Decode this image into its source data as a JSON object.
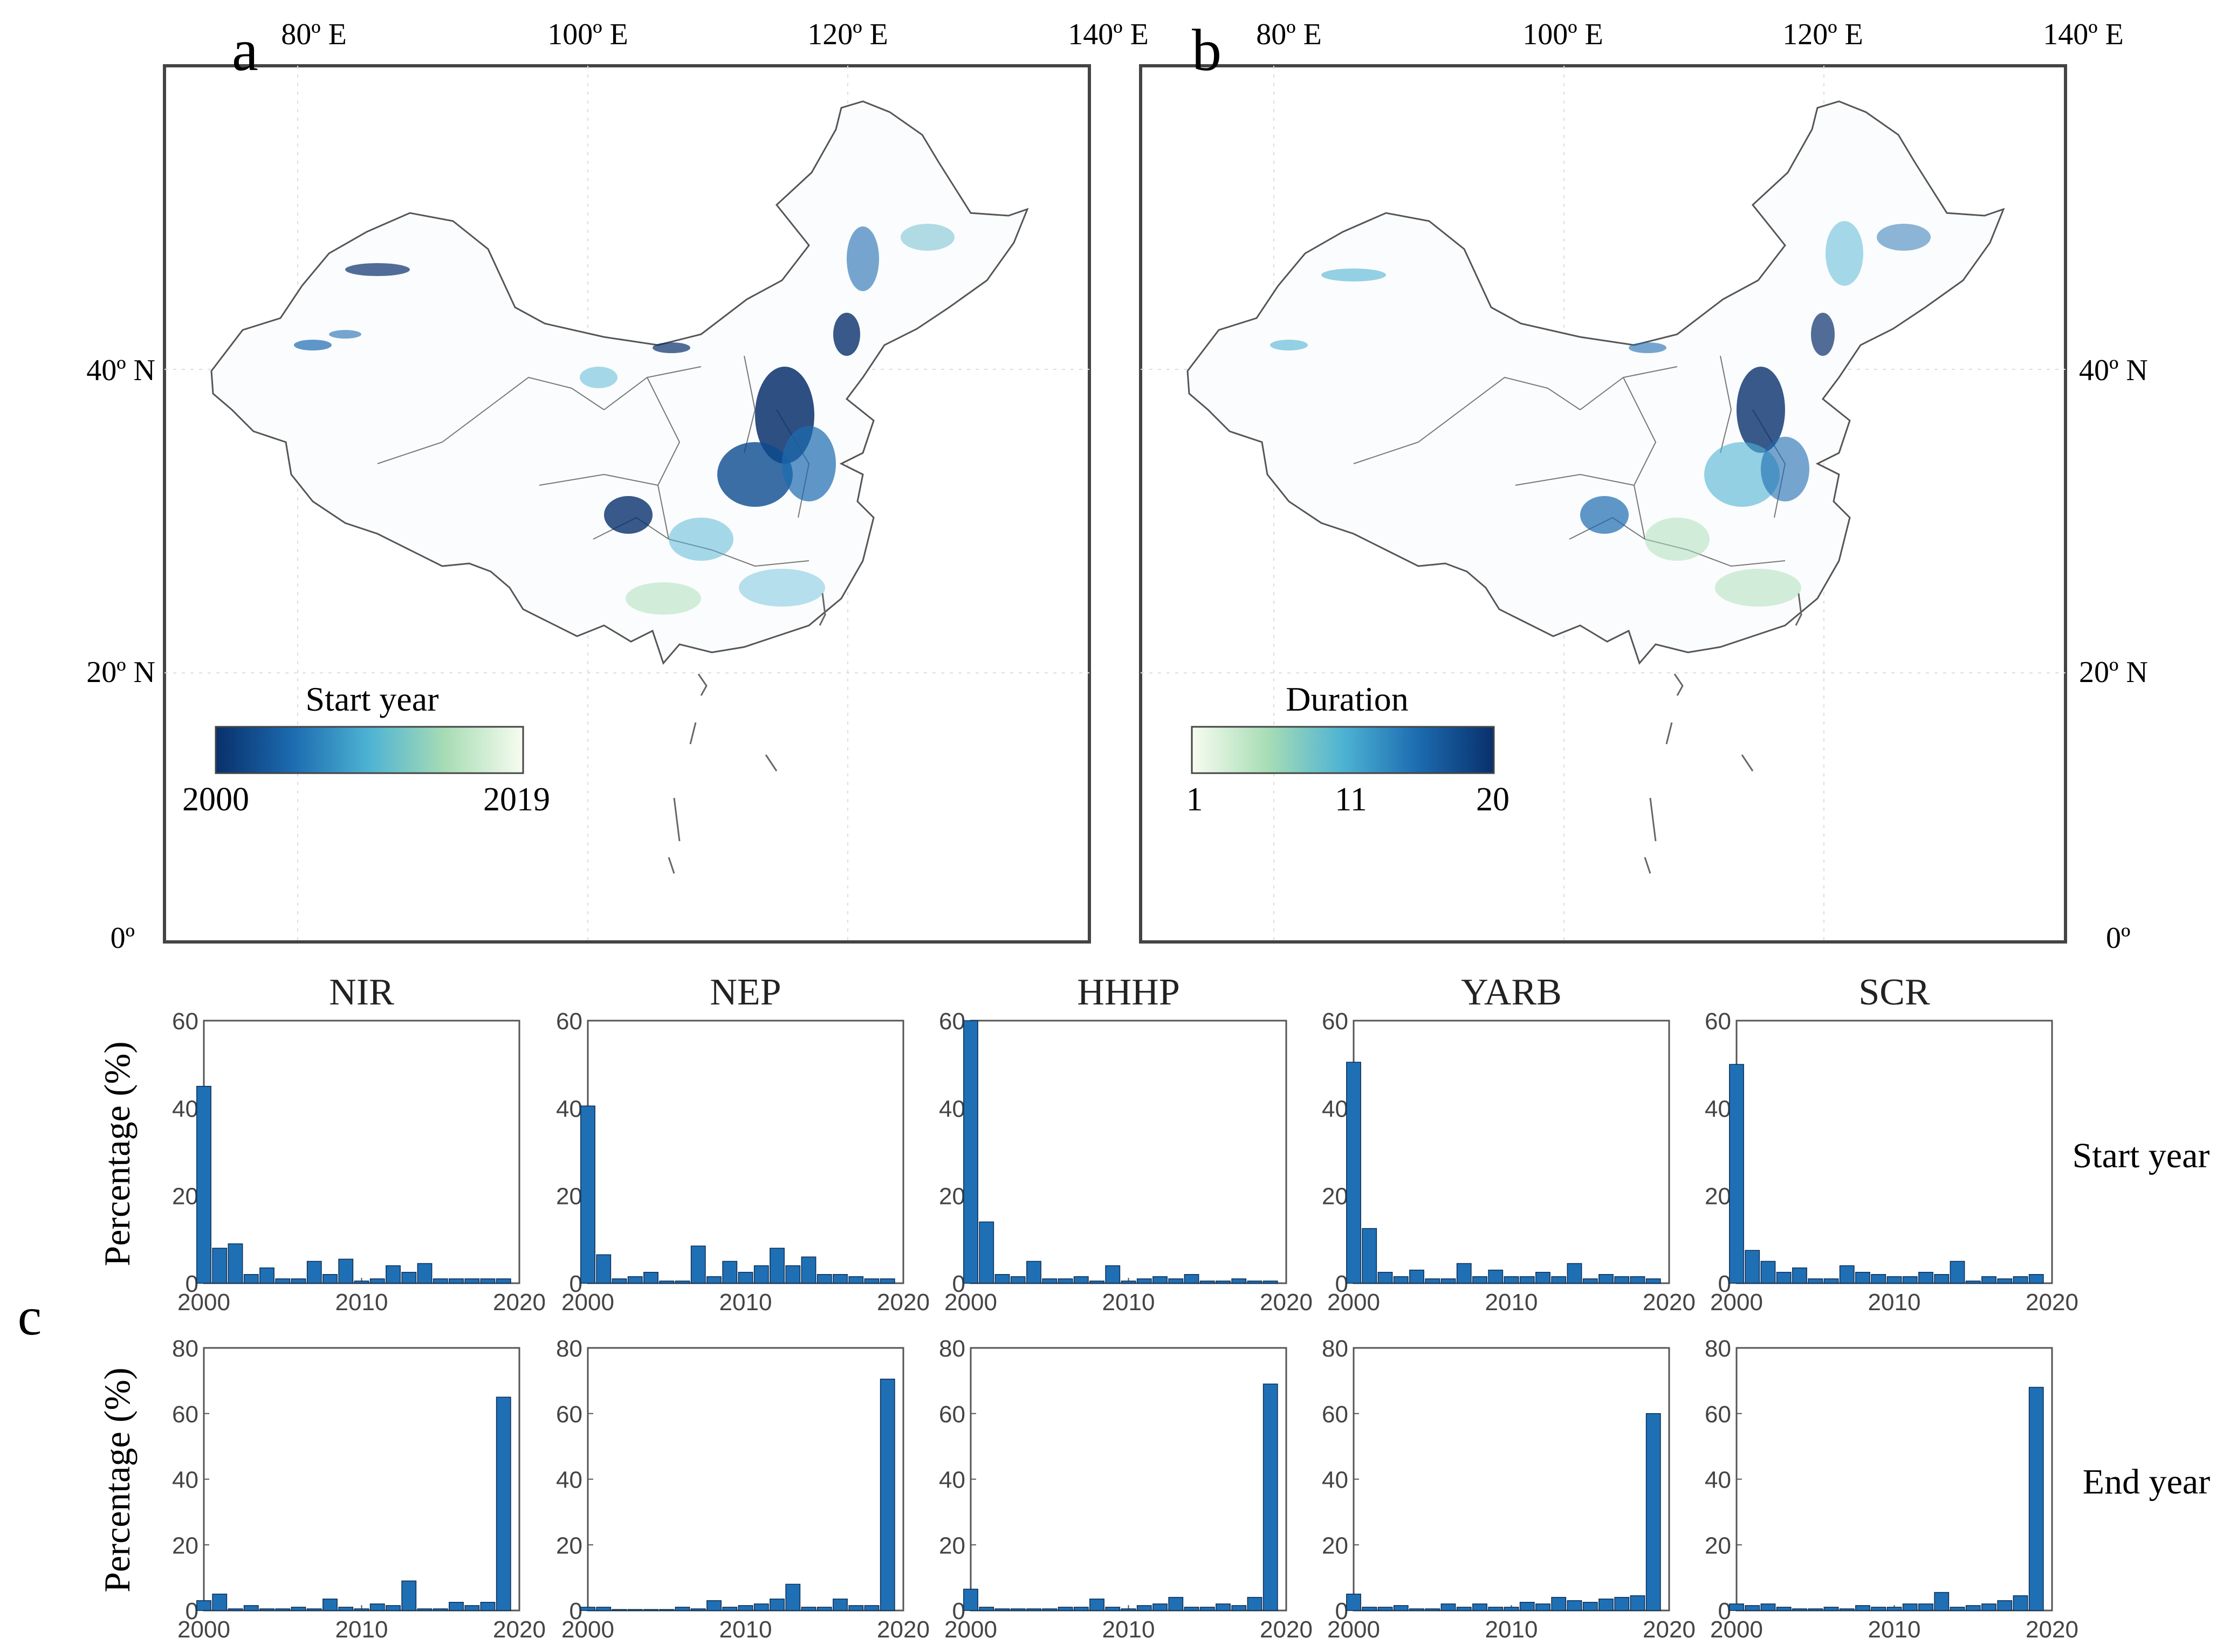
{
  "maps": {
    "lon_ticks": [
      "80º E",
      "100º E",
      "120º E",
      "140º E"
    ],
    "lat_ticks": [
      "40º N",
      "20º N",
      "0º"
    ],
    "panel_a": {
      "label": "a",
      "colorbar_title": "Start year",
      "colorbar_ticks": [
        "2000",
        "2019"
      ],
      "colors": [
        "#08306b",
        "#1c6bb0",
        "#4eb3d3",
        "#a8ddb5",
        "#f7fcf0"
      ]
    },
    "panel_b": {
      "label": "b",
      "colorbar_title": "Duration",
      "colorbar_ticks": [
        "1",
        "11",
        "20"
      ],
      "colors": [
        "#f7fcf0",
        "#a8ddb5",
        "#4eb3d3",
        "#1c6bb0",
        "#08306b"
      ]
    }
  },
  "panel_c": {
    "label": "c",
    "row_labels": [
      "Start year",
      "End year"
    ],
    "ylabel": "Percentage (%)",
    "x_ticks": [
      "2000",
      "2010",
      "2020"
    ],
    "bar_color": "#1f6fb5"
  },
  "chart_data": [
    {
      "type": "bar",
      "title": "NIR",
      "row": "Start year",
      "xlabel": "",
      "ylabel": "Percentage (%)",
      "xlim": [
        2000,
        2020
      ],
      "ylim": [
        0,
        60
      ],
      "yticks": [
        0,
        20,
        40,
        60
      ],
      "x": [
        2000,
        2001,
        2002,
        2003,
        2004,
        2005,
        2006,
        2007,
        2008,
        2009,
        2010,
        2011,
        2012,
        2013,
        2014,
        2015,
        2016,
        2017,
        2018,
        2019
      ],
      "values": [
        45,
        8,
        9,
        2,
        3.5,
        1,
        1,
        5,
        2,
        5.5,
        0.5,
        1,
        4,
        2.5,
        4.5,
        1,
        1,
        1,
        1,
        1
      ]
    },
    {
      "type": "bar",
      "title": "NEP",
      "row": "Start year",
      "xlabel": "",
      "ylabel": "Percentage (%)",
      "xlim": [
        2000,
        2020
      ],
      "ylim": [
        0,
        60
      ],
      "yticks": [
        0,
        20,
        40,
        60
      ],
      "x": [
        2000,
        2001,
        2002,
        2003,
        2004,
        2005,
        2006,
        2007,
        2008,
        2009,
        2010,
        2011,
        2012,
        2013,
        2014,
        2015,
        2016,
        2017,
        2018,
        2019
      ],
      "values": [
        40.5,
        6.5,
        1,
        1.5,
        2.5,
        0.5,
        0.5,
        8.5,
        1.5,
        5,
        2.5,
        4,
        8,
        4,
        6,
        2,
        2,
        1.5,
        1,
        1
      ]
    },
    {
      "type": "bar",
      "title": "HHHP",
      "row": "Start year",
      "xlabel": "",
      "ylabel": "Percentage (%)",
      "xlim": [
        2000,
        2020
      ],
      "ylim": [
        0,
        60
      ],
      "yticks": [
        0,
        20,
        40,
        60
      ],
      "x": [
        2000,
        2001,
        2002,
        2003,
        2004,
        2005,
        2006,
        2007,
        2008,
        2009,
        2010,
        2011,
        2012,
        2013,
        2014,
        2015,
        2016,
        2017,
        2018,
        2019
      ],
      "values": [
        60,
        14,
        2,
        1.5,
        5,
        1,
        1,
        1.5,
        0.5,
        4,
        0.5,
        1,
        1.5,
        1,
        2,
        0.5,
        0.5,
        1,
        0.5,
        0.5
      ]
    },
    {
      "type": "bar",
      "title": "YARB",
      "row": "Start year",
      "xlabel": "",
      "ylabel": "Percentage (%)",
      "xlim": [
        2000,
        2020
      ],
      "ylim": [
        0,
        60
      ],
      "yticks": [
        0,
        20,
        40,
        60
      ],
      "x": [
        2000,
        2001,
        2002,
        2003,
        2004,
        2005,
        2006,
        2007,
        2008,
        2009,
        2010,
        2011,
        2012,
        2013,
        2014,
        2015,
        2016,
        2017,
        2018,
        2019
      ],
      "values": [
        50.5,
        12.5,
        2.5,
        1.5,
        3,
        1,
        1,
        4.5,
        1.5,
        3,
        1.5,
        1.5,
        2.5,
        1.5,
        4.5,
        1,
        2,
        1.5,
        1.5,
        1
      ]
    },
    {
      "type": "bar",
      "title": "SCR",
      "row": "Start year",
      "xlabel": "",
      "ylabel": "Percentage (%)",
      "xlim": [
        2000,
        2020
      ],
      "ylim": [
        0,
        60
      ],
      "yticks": [
        0,
        20,
        40,
        60
      ],
      "x": [
        2000,
        2001,
        2002,
        2003,
        2004,
        2005,
        2006,
        2007,
        2008,
        2009,
        2010,
        2011,
        2012,
        2013,
        2014,
        2015,
        2016,
        2017,
        2018,
        2019
      ],
      "values": [
        50,
        7.5,
        5,
        2.5,
        3.5,
        1,
        1,
        4,
        2.5,
        2,
        1.5,
        1.5,
        2.5,
        2,
        5,
        0.5,
        1.5,
        1,
        1.5,
        2
      ]
    },
    {
      "type": "bar",
      "title": "",
      "row": "End year",
      "xlabel": "",
      "ylabel": "Percentage (%)",
      "xlim": [
        2000,
        2020
      ],
      "ylim": [
        0,
        80
      ],
      "yticks": [
        0,
        20,
        40,
        60,
        80
      ],
      "x": [
        2000,
        2001,
        2002,
        2003,
        2004,
        2005,
        2006,
        2007,
        2008,
        2009,
        2010,
        2011,
        2012,
        2013,
        2014,
        2015,
        2016,
        2017,
        2018,
        2019
      ],
      "values": [
        3,
        5,
        0.5,
        1.5,
        0.5,
        0.5,
        1,
        0.5,
        3.5,
        1,
        0.5,
        2,
        1.5,
        9,
        0.5,
        0.5,
        2.5,
        1.5,
        2.5,
        65
      ]
    },
    {
      "type": "bar",
      "title": "",
      "row": "End year",
      "xlabel": "",
      "ylabel": "Percentage (%)",
      "xlim": [
        2000,
        2020
      ],
      "ylim": [
        0,
        80
      ],
      "yticks": [
        0,
        20,
        40,
        60,
        80
      ],
      "x": [
        2000,
        2001,
        2002,
        2003,
        2004,
        2005,
        2006,
        2007,
        2008,
        2009,
        2010,
        2011,
        2012,
        2013,
        2014,
        2015,
        2016,
        2017,
        2018,
        2019
      ],
      "values": [
        1,
        1,
        0.3,
        0.3,
        0.3,
        0.3,
        1,
        0.5,
        3,
        1,
        1.5,
        2,
        3.5,
        8,
        1,
        1,
        3.5,
        1.5,
        1.5,
        70.5
      ]
    },
    {
      "type": "bar",
      "title": "",
      "row": "End year",
      "xlabel": "",
      "ylabel": "Percentage (%)",
      "xlim": [
        2000,
        2020
      ],
      "ylim": [
        0,
        80
      ],
      "yticks": [
        0,
        20,
        40,
        60,
        80
      ],
      "x": [
        2000,
        2001,
        2002,
        2003,
        2004,
        2005,
        2006,
        2007,
        2008,
        2009,
        2010,
        2011,
        2012,
        2013,
        2014,
        2015,
        2016,
        2017,
        2018,
        2019
      ],
      "values": [
        6.5,
        1,
        0.5,
        0.5,
        0.5,
        0.5,
        1,
        1,
        3.5,
        1,
        0.5,
        1.5,
        2,
        4,
        1,
        1,
        2,
        1.5,
        4,
        69
      ]
    },
    {
      "type": "bar",
      "title": "",
      "row": "End year",
      "xlabel": "",
      "ylabel": "Percentage (%)",
      "xlim": [
        2000,
        2020
      ],
      "ylim": [
        0,
        80
      ],
      "yticks": [
        0,
        20,
        40,
        60,
        80
      ],
      "x": [
        2000,
        2001,
        2002,
        2003,
        2004,
        2005,
        2006,
        2007,
        2008,
        2009,
        2010,
        2011,
        2012,
        2013,
        2014,
        2015,
        2016,
        2017,
        2018,
        2019
      ],
      "values": [
        5,
        1,
        1,
        1.5,
        0.5,
        0.5,
        2,
        1,
        2,
        1,
        1,
        2.5,
        2,
        4,
        3,
        2.5,
        3.5,
        4,
        4.5,
        60
      ]
    },
    {
      "type": "bar",
      "title": "",
      "row": "End year",
      "xlabel": "",
      "ylabel": "Percentage (%)",
      "xlim": [
        2000,
        2020
      ],
      "ylim": [
        0,
        80
      ],
      "yticks": [
        0,
        20,
        40,
        60,
        80
      ],
      "x": [
        2000,
        2001,
        2002,
        2003,
        2004,
        2005,
        2006,
        2007,
        2008,
        2009,
        2010,
        2011,
        2012,
        2013,
        2014,
        2015,
        2016,
        2017,
        2018,
        2019
      ],
      "values": [
        2,
        1.5,
        2,
        1,
        0.5,
        0.5,
        1,
        0.5,
        1.5,
        1,
        1,
        2,
        2,
        5.5,
        1,
        1.5,
        2,
        3,
        4.5,
        68
      ]
    }
  ]
}
